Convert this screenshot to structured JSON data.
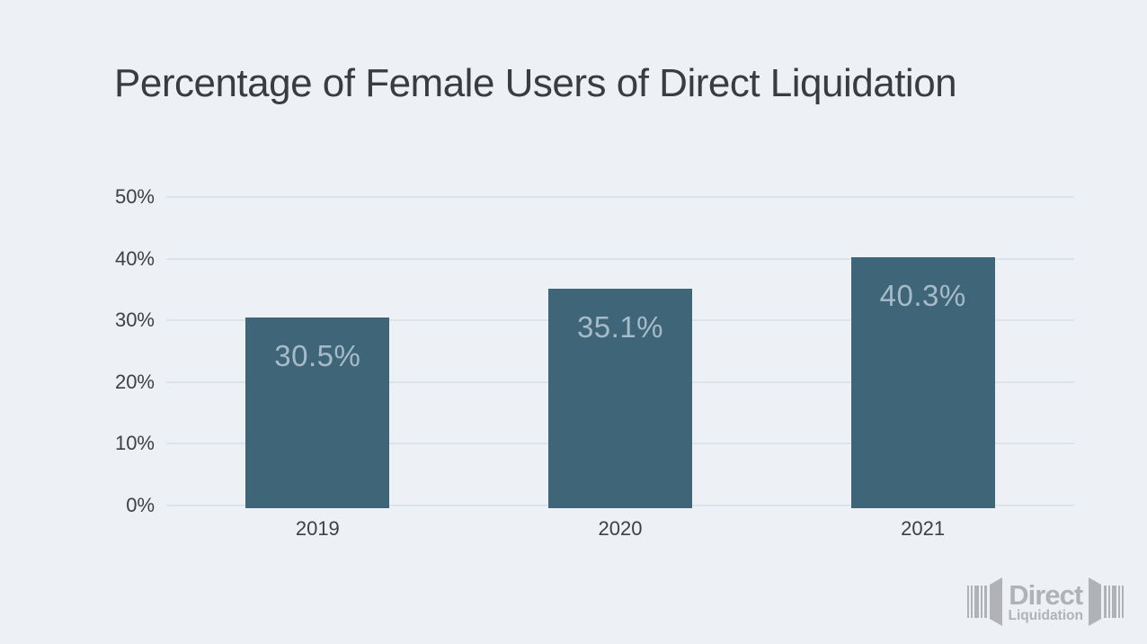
{
  "title": "Percentage of Female Users of Direct Liquidation",
  "chart_data": {
    "type": "bar",
    "title": "Percentage of Female Users of Direct Liquidation",
    "categories": [
      "2019",
      "2020",
      "2021"
    ],
    "values": [
      30.5,
      35.1,
      40.3
    ],
    "value_labels": [
      "30.5%",
      "35.1%",
      "40.3%"
    ],
    "xlabel": "",
    "ylabel": "",
    "ylim": [
      0,
      50
    ],
    "yticks": [
      {
        "value": 0,
        "label": "0%"
      },
      {
        "value": 10,
        "label": "10%"
      },
      {
        "value": 20,
        "label": "20%"
      },
      {
        "value": 30,
        "label": "30%"
      },
      {
        "value": 40,
        "label": "40%"
      },
      {
        "value": 50,
        "label": "50%"
      }
    ],
    "grid": "horizontal",
    "legend": "none"
  },
  "logo": {
    "line1": "Direct",
    "line2": "Liquidation"
  },
  "colors": {
    "background": "#edf1f5",
    "title_text": "#3a3d40",
    "axis_text": "#3d4045",
    "gridline": "#dce3e9",
    "bar": "#3e6578",
    "bar_label": "#a6bbc7",
    "logo": "#b1b2b6"
  }
}
